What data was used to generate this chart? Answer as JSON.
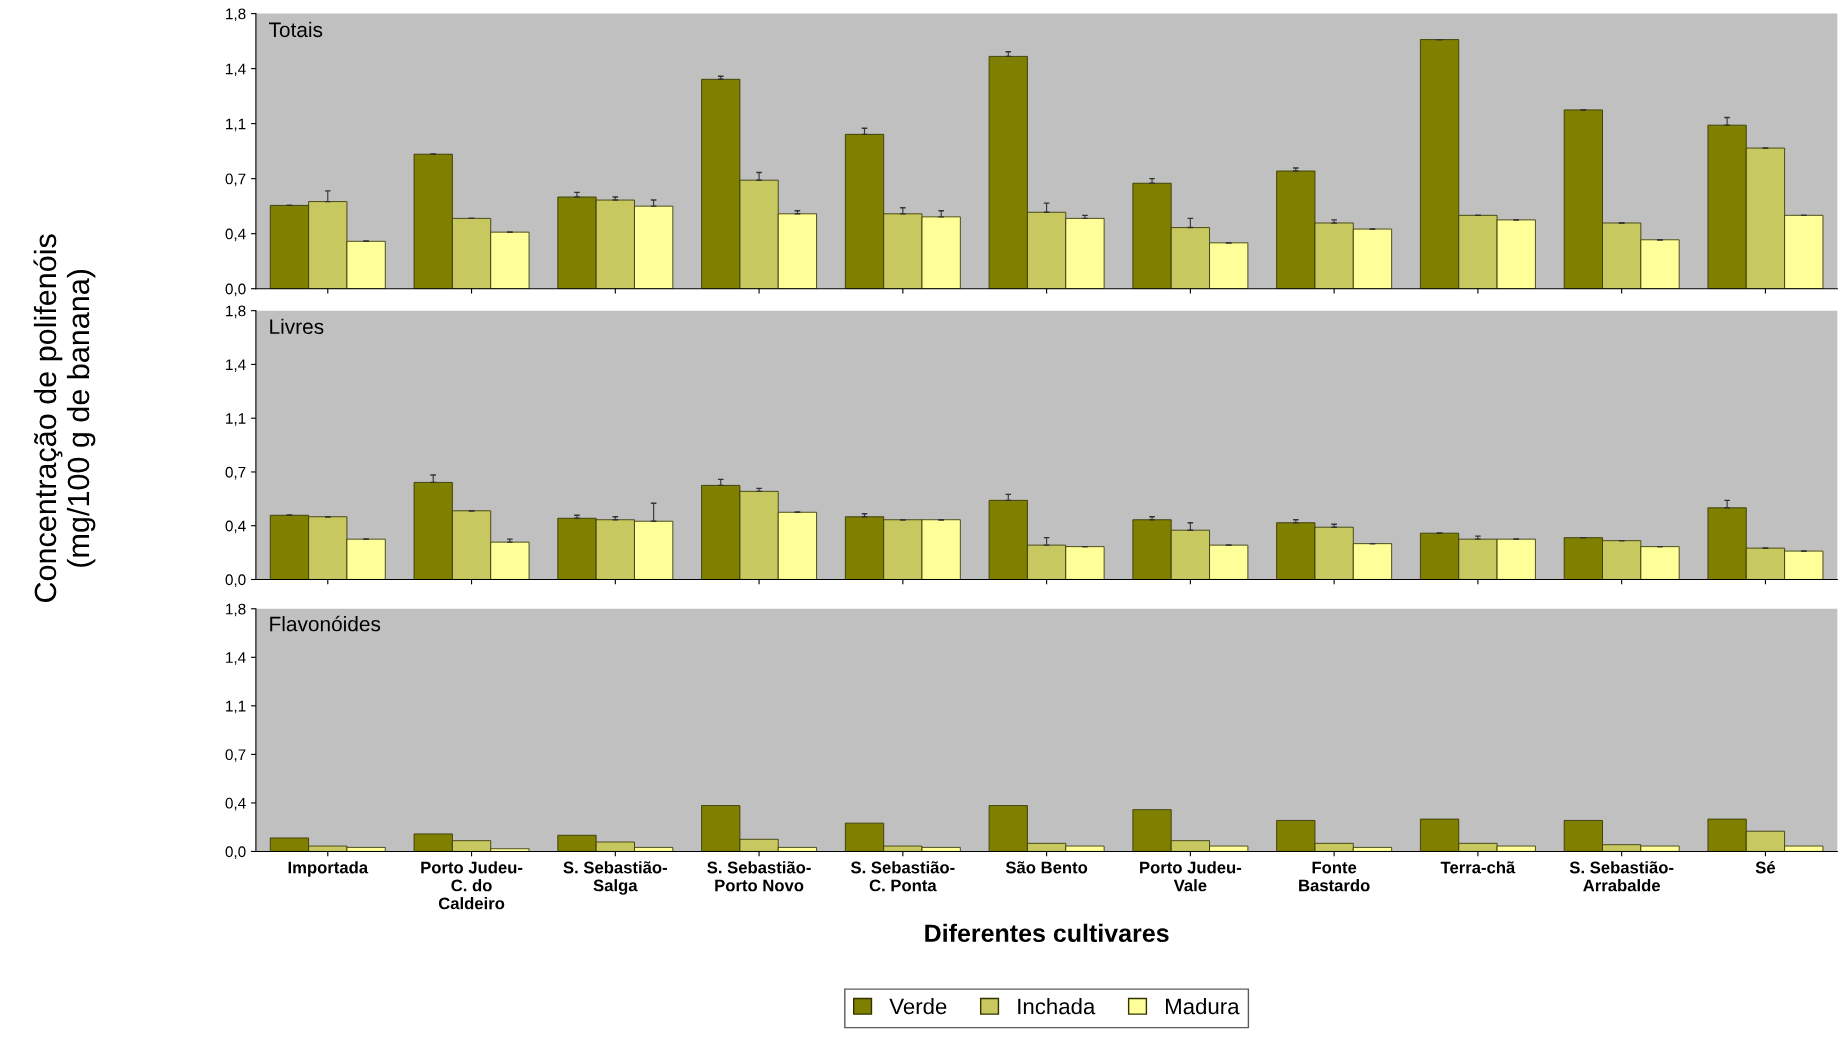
{
  "chart_data": [
    {
      "type": "bar",
      "title": "Totais",
      "ylabel": "Concentração de polifenóis\n(mg/100 g de banana)",
      "series": [
        {
          "name": "Verde",
          "color": "#7f7f00",
          "values": [
            0.545,
            0.88,
            0.6,
            1.37,
            1.01,
            1.52,
            0.69,
            0.77,
            1.63,
            1.17,
            1.07
          ],
          "errors": [
            null,
            null,
            0.03,
            0.02,
            0.04,
            0.03,
            0.03,
            0.02,
            null,
            null,
            0.05
          ]
        },
        {
          "name": "Inchada",
          "color": "#c8c860",
          "values": [
            0.57,
            0.46,
            0.58,
            0.71,
            0.49,
            0.5,
            0.4,
            0.43,
            0.48,
            0.43,
            0.92
          ],
          "errors": [
            0.07,
            null,
            0.02,
            0.05,
            0.04,
            0.06,
            0.06,
            0.02,
            null,
            null,
            null
          ]
        },
        {
          "name": "Madura",
          "color": "#ffff99",
          "values": [
            0.31,
            0.37,
            0.54,
            0.49,
            0.47,
            0.46,
            0.3,
            0.39,
            0.45,
            0.32,
            0.48
          ],
          "errors": [
            null,
            null,
            0.04,
            0.02,
            0.04,
            0.02,
            null,
            null,
            null,
            null,
            null
          ]
        }
      ],
      "ylim": [
        0,
        1.8
      ],
      "yticks": [
        {
          "value": 0,
          "label": "0,0"
        },
        {
          "value": 0.36,
          "label": "0,4"
        },
        {
          "value": 0.72,
          "label": "0,7"
        },
        {
          "value": 1.08,
          "label": "1,1"
        },
        {
          "value": 1.44,
          "label": "1,4"
        },
        {
          "value": 1.8,
          "label": "1,8"
        }
      ],
      "tick_labels": "y",
      "legend": "bottom"
    },
    {
      "type": "bar",
      "title": "Livres",
      "series": [
        {
          "color": "#7f7f00",
          "values": [
            0.43,
            0.65,
            0.41,
            0.63,
            0.42,
            0.53,
            0.4,
            0.38,
            0.31,
            0.28,
            0.48
          ],
          "errors": [
            null,
            0.05,
            0.02,
            0.04,
            0.02,
            0.04,
            0.02,
            0.02,
            null,
            null,
            0.05
          ]
        },
        {
          "color": "#c8c860",
          "values": [
            0.42,
            0.46,
            0.4,
            0.59,
            0.4,
            0.23,
            0.33,
            0.35,
            0.27,
            0.26,
            0.21
          ],
          "errors": [
            null,
            null,
            0.02,
            0.02,
            null,
            0.05,
            0.05,
            0.02,
            0.02,
            null,
            null
          ]
        },
        {
          "color": "#ffff99",
          "values": [
            0.27,
            0.25,
            0.39,
            0.45,
            0.4,
            0.22,
            0.23,
            0.24,
            0.27,
            0.22,
            0.19
          ],
          "errors": [
            null,
            0.02,
            0.12,
            null,
            null,
            null,
            null,
            null,
            null,
            null,
            null
          ]
        }
      ],
      "ylim": [
        0,
        1.8
      ],
      "yticks": [
        {
          "value": 0,
          "label": "0,0"
        },
        {
          "value": 0.36,
          "label": "0,4"
        },
        {
          "value": 0.72,
          "label": "0,7"
        },
        {
          "value": 1.08,
          "label": "1,1"
        },
        {
          "value": 1.44,
          "label": "1,4"
        },
        {
          "value": 1.8,
          "label": "1,8"
        }
      ],
      "tick_labels": "y"
    },
    {
      "type": "bar",
      "title": "Flavonóides",
      "xlabel": "Diferentes cultivares",
      "categories": [
        "Importada",
        "Porto Judeu-\nC. do\nCaldeiro",
        "S. Sebastião-\nSalga",
        "S. Sebastião-\nPorto Novo",
        "S. Sebastião-\nC. Ponta",
        "São Bento",
        "Porto Judeu-\nVale",
        "Fonte\nBastardo",
        "Terra-chã",
        "S. Sebastião-\nArrabalde",
        "Sé"
      ],
      "series": [
        {
          "color": "#7f7f00",
          "values": [
            0.1,
            0.13,
            0.12,
            0.34,
            0.21,
            0.34,
            0.31,
            0.23,
            0.24,
            0.23,
            0.24
          ]
        },
        {
          "color": "#c8c860",
          "values": [
            0.04,
            0.08,
            0.07,
            0.09,
            0.04,
            0.06,
            0.08,
            0.06,
            0.06,
            0.05,
            0.15
          ]
        },
        {
          "color": "#ffff99",
          "values": [
            0.03,
            0.02,
            0.03,
            0.03,
            0.03,
            0.04,
            0.04,
            0.03,
            0.04,
            0.04,
            0.04
          ]
        }
      ],
      "ylim": [
        0,
        1.8
      ],
      "yticks": [
        {
          "value": 0,
          "label": "0,0"
        },
        {
          "value": 0.36,
          "label": "0,4"
        },
        {
          "value": 0.72,
          "label": "0,7"
        },
        {
          "value": 1.08,
          "label": "1,1"
        },
        {
          "value": 1.44,
          "label": "1,4"
        },
        {
          "value": 1.8,
          "label": "1,8"
        }
      ]
    }
  ]
}
